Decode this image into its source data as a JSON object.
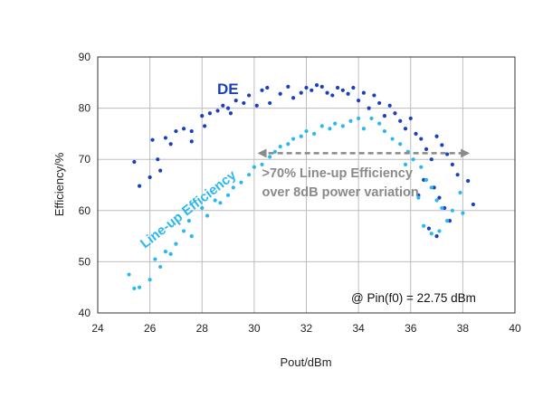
{
  "chart_data": {
    "type": "scatter",
    "xlabel": "Pout/dBm",
    "ylabel": "Efficiency/%",
    "xlim": [
      24,
      40
    ],
    "ylim": [
      40,
      90
    ],
    "x_ticks": [
      24,
      26,
      28,
      30,
      32,
      34,
      36,
      38,
      40
    ],
    "y_ticks": [
      40,
      50,
      60,
      70,
      80,
      90
    ],
    "x_tick_labels": [
      "24",
      "26",
      "28",
      "30",
      "32",
      "34",
      "36",
      "38",
      "40"
    ],
    "y_tick_labels": [
      "40",
      "50",
      "60",
      "70",
      "80",
      "90"
    ],
    "grid": true,
    "series": [
      {
        "name": "DE",
        "color": "#1a3fbf",
        "points": [
          [
            25.4,
            69.5
          ],
          [
            25.6,
            64.8
          ],
          [
            26.0,
            66.5
          ],
          [
            26.1,
            73.8
          ],
          [
            26.3,
            70.0
          ],
          [
            26.4,
            67.8
          ],
          [
            26.6,
            74.2
          ],
          [
            26.8,
            73.0
          ],
          [
            27.0,
            75.5
          ],
          [
            27.3,
            76.0
          ],
          [
            27.6,
            75.5
          ],
          [
            27.6,
            73.5
          ],
          [
            28.0,
            78.5
          ],
          [
            28.1,
            76.5
          ],
          [
            28.3,
            79.0
          ],
          [
            28.6,
            79.5
          ],
          [
            28.8,
            80.5
          ],
          [
            29.0,
            80.0
          ],
          [
            29.1,
            79.0
          ],
          [
            29.3,
            81.5
          ],
          [
            29.6,
            81.0
          ],
          [
            29.8,
            82.5
          ],
          [
            30.1,
            80.5
          ],
          [
            30.3,
            83.5
          ],
          [
            30.5,
            84.0
          ],
          [
            30.6,
            81.0
          ],
          [
            31.0,
            82.8
          ],
          [
            31.3,
            84.2
          ],
          [
            31.5,
            82.0
          ],
          [
            31.8,
            83.0
          ],
          [
            32.0,
            84.0
          ],
          [
            32.2,
            83.5
          ],
          [
            32.4,
            84.5
          ],
          [
            32.6,
            84.2
          ],
          [
            32.8,
            83.0
          ],
          [
            33.0,
            82.5
          ],
          [
            33.2,
            84.0
          ],
          [
            33.4,
            83.5
          ],
          [
            33.6,
            82.8
          ],
          [
            33.8,
            84.0
          ],
          [
            34.0,
            81.5
          ],
          [
            34.2,
            83.0
          ],
          [
            34.4,
            80.0
          ],
          [
            34.6,
            82.5
          ],
          [
            34.8,
            81.0
          ],
          [
            35.0,
            78.5
          ],
          [
            35.2,
            80.5
          ],
          [
            35.4,
            79.0
          ],
          [
            35.6,
            77.5
          ],
          [
            35.8,
            76.0
          ],
          [
            36.0,
            78.0
          ],
          [
            36.2,
            75.0
          ],
          [
            36.4,
            74.0
          ],
          [
            36.6,
            72.0
          ],
          [
            36.8,
            70.0
          ],
          [
            37.0,
            74.5
          ],
          [
            37.2,
            72.8
          ],
          [
            37.4,
            71.0
          ],
          [
            37.6,
            69.0
          ],
          [
            37.8,
            67.0
          ],
          [
            38.2,
            65.8
          ],
          [
            38.4,
            61.2
          ],
          [
            36.5,
            66.0
          ],
          [
            36.9,
            64.5
          ],
          [
            37.1,
            62.5
          ],
          [
            37.3,
            60.5
          ],
          [
            37.5,
            58.0
          ],
          [
            36.7,
            56.5
          ],
          [
            37.0,
            55.0
          ],
          [
            36.3,
            63.0
          ]
        ]
      },
      {
        "name": "Line-up Efficiency",
        "color": "#29b8f0",
        "points": [
          [
            25.2,
            47.5
          ],
          [
            25.4,
            44.8
          ],
          [
            25.6,
            45.0
          ],
          [
            26.0,
            46.5
          ],
          [
            26.2,
            50.5
          ],
          [
            26.4,
            49.0
          ],
          [
            26.6,
            52.0
          ],
          [
            26.8,
            51.5
          ],
          [
            27.0,
            53.5
          ],
          [
            27.3,
            56.0
          ],
          [
            27.6,
            55.0
          ],
          [
            27.5,
            58.0
          ],
          [
            28.0,
            60.5
          ],
          [
            28.2,
            59.0
          ],
          [
            28.5,
            62.0
          ],
          [
            28.7,
            61.5
          ],
          [
            29.0,
            63.0
          ],
          [
            29.2,
            64.5
          ],
          [
            29.5,
            65.5
          ],
          [
            29.8,
            67.0
          ],
          [
            30.0,
            68.5
          ],
          [
            30.3,
            69.0
          ],
          [
            30.6,
            70.5
          ],
          [
            30.8,
            71.5
          ],
          [
            31.0,
            72.5
          ],
          [
            31.3,
            73.0
          ],
          [
            31.5,
            74.0
          ],
          [
            31.8,
            74.5
          ],
          [
            32.0,
            75.5
          ],
          [
            32.3,
            75.0
          ],
          [
            32.6,
            76.5
          ],
          [
            32.9,
            76.0
          ],
          [
            33.1,
            77.0
          ],
          [
            33.4,
            76.5
          ],
          [
            33.7,
            77.5
          ],
          [
            34.0,
            78.0
          ],
          [
            34.2,
            76.0
          ],
          [
            34.5,
            78.0
          ],
          [
            34.8,
            77.0
          ],
          [
            35.0,
            75.5
          ],
          [
            35.3,
            74.0
          ],
          [
            35.6,
            73.0
          ],
          [
            35.9,
            71.5
          ],
          [
            36.1,
            70.0
          ],
          [
            36.4,
            68.5
          ],
          [
            36.6,
            66.0
          ],
          [
            36.8,
            64.5
          ],
          [
            37.0,
            62.0
          ],
          [
            37.2,
            60.5
          ],
          [
            37.4,
            58.0
          ],
          [
            36.5,
            57.0
          ],
          [
            36.8,
            55.5
          ],
          [
            37.1,
            56.0
          ],
          [
            37.6,
            60.0
          ],
          [
            37.9,
            63.5
          ],
          [
            38.0,
            59.5
          ],
          [
            36.3,
            62.5
          ],
          [
            35.8,
            69.0
          ]
        ]
      }
    ],
    "annotations": [
      {
        "text": ">70% Line-up Efficiency",
        "x": 30.3,
        "y": 66.5
      },
      {
        "text": "over 8dB power variation",
        "x": 30.3,
        "y": 62.8
      }
    ],
    "arrow": {
      "x_start": 30.2,
      "x_end": 38.2,
      "y": 71.2
    },
    "condition": "@ Pin(f0) = 22.75 dBm"
  }
}
